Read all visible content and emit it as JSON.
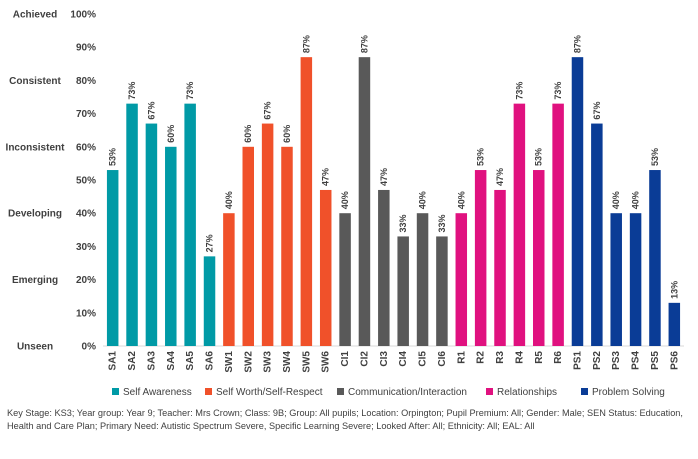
{
  "chart_data": {
    "type": "bar",
    "categories": [
      "SA1",
      "SA2",
      "SA3",
      "SA4",
      "SA5",
      "SA6",
      "SW1",
      "SW2",
      "SW3",
      "SW4",
      "SW5",
      "SW6",
      "CI1",
      "CI2",
      "CI3",
      "CI4",
      "CI5",
      "CI6",
      "R1",
      "R2",
      "R3",
      "R4",
      "R5",
      "R6",
      "PS1",
      "PS2",
      "PS3",
      "PS4",
      "PS5",
      "PS6"
    ],
    "values": [
      53,
      73,
      67,
      60,
      73,
      27,
      40,
      60,
      67,
      60,
      87,
      47,
      40,
      87,
      47,
      33,
      40,
      33,
      40,
      53,
      47,
      73,
      53,
      73,
      87,
      67,
      40,
      40,
      53,
      13
    ],
    "value_labels": [
      "53%",
      "73%",
      "67%",
      "60%",
      "73%",
      "27%",
      "40%",
      "60%",
      "67%",
      "60%",
      "87%",
      "47%",
      "40%",
      "87%",
      "47%",
      "33%",
      "40%",
      "33%",
      "40%",
      "53%",
      "47%",
      "73%",
      "53%",
      "73%",
      "87%",
      "67%",
      "40%",
      "40%",
      "53%",
      "13%"
    ],
    "groups": [
      0,
      0,
      0,
      0,
      0,
      0,
      1,
      1,
      1,
      1,
      1,
      1,
      2,
      2,
      2,
      2,
      2,
      2,
      3,
      3,
      3,
      3,
      3,
      3,
      4,
      4,
      4,
      4,
      4,
      4
    ],
    "series": [
      {
        "name": "Self Awareness",
        "color": "#009aa6"
      },
      {
        "name": "Self Worth/Self-Respect",
        "color": "#f0512a"
      },
      {
        "name": "Communication/Interaction",
        "color": "#595959"
      },
      {
        "name": "Relationships",
        "color": "#e0117f"
      },
      {
        "name": "Problem Solving",
        "color": "#0a3c96"
      }
    ],
    "ylim": [
      0,
      100
    ],
    "yticks": [
      0,
      10,
      20,
      30,
      40,
      50,
      60,
      70,
      80,
      90,
      100
    ],
    "ytick_labels": [
      "0%",
      "10%",
      "20%",
      "30%",
      "40%",
      "50%",
      "60%",
      "70%",
      "80%",
      "90%",
      "100%"
    ],
    "level_labels": [
      {
        "label": "Achieved",
        "value": 100
      },
      {
        "label": "Consistent",
        "value": 80
      },
      {
        "label": "Inconsistent",
        "value": 60
      },
      {
        "label": "Developing",
        "value": 40
      },
      {
        "label": "Emerging",
        "value": 20
      },
      {
        "label": "Unseen",
        "value": 0
      }
    ],
    "legend_position": "bottom",
    "grid": false
  },
  "footer": "Key Stage: KS3; Year group: Year 9; Teacher: Mrs Crown; Class: 9B; Group: All pupils; Location: Orpington; Pupil Premium: All; Gender: Male; SEN Status: Education, Health and Care Plan; Primary Need: Autistic Spectrum Severe, Specific Learning Severe; Looked After: All; Ethnicity: All; EAL: All"
}
